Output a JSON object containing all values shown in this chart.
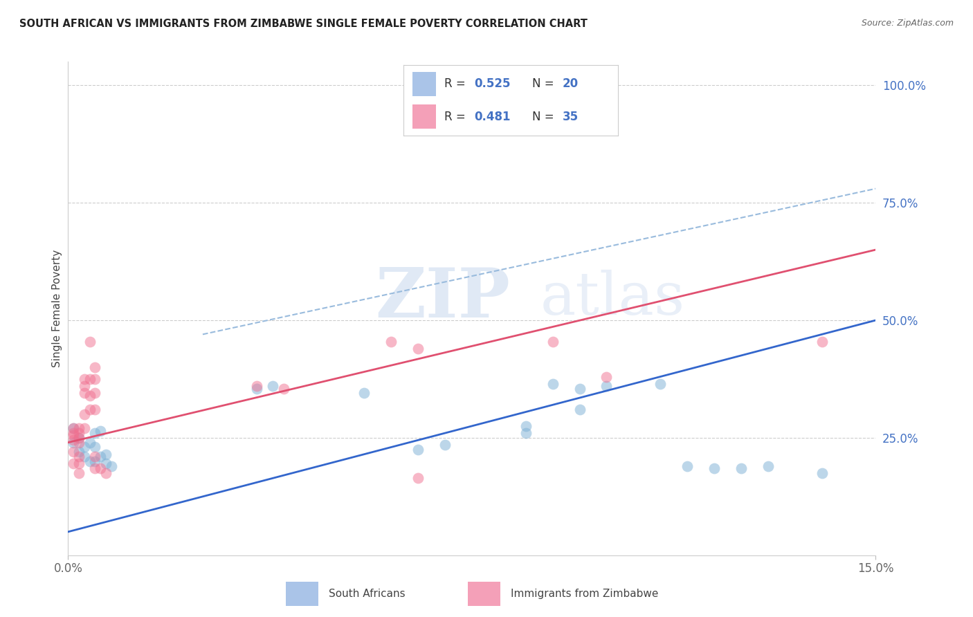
{
  "title": "SOUTH AFRICAN VS IMMIGRANTS FROM ZIMBABWE SINGLE FEMALE POVERTY CORRELATION CHART",
  "source": "Source: ZipAtlas.com",
  "ylabel": "Single Female Poverty",
  "ytick_vals": [
    0.25,
    0.5,
    0.75,
    1.0
  ],
  "ytick_labels": [
    "25.0%",
    "50.0%",
    "75.0%",
    "100.0%"
  ],
  "xtick_vals": [
    0.0,
    0.15
  ],
  "xtick_labels": [
    "0.0%",
    "15.0%"
  ],
  "sa_color": "#7bafd4",
  "zim_color": "#f07090",
  "trendline_sa_color": "#3366cc",
  "trendline_zim_color": "#e05070",
  "trendline_dashed_color": "#99bbdd",
  "xmin": 0.0,
  "xmax": 0.15,
  "ymin": 0.0,
  "ymax": 1.05,
  "marker_size": 130,
  "marker_alpha": 0.5,
  "south_africans_x": [
    0.001,
    0.001,
    0.002,
    0.002,
    0.003,
    0.003,
    0.004,
    0.004,
    0.005,
    0.005,
    0.005,
    0.006,
    0.006,
    0.007,
    0.007,
    0.008,
    0.035,
    0.038,
    0.055,
    0.065,
    0.07,
    0.085,
    0.085,
    0.09,
    0.095,
    0.095,
    0.1,
    0.11,
    0.115,
    0.12,
    0.125,
    0.13,
    0.14
  ],
  "south_africans_y": [
    0.27,
    0.24,
    0.25,
    0.22,
    0.23,
    0.21,
    0.24,
    0.2,
    0.26,
    0.23,
    0.2,
    0.265,
    0.21,
    0.215,
    0.195,
    0.19,
    0.355,
    0.36,
    0.345,
    0.225,
    0.235,
    0.275,
    0.26,
    0.365,
    0.355,
    0.31,
    0.36,
    0.365,
    0.19,
    0.185,
    0.185,
    0.19,
    0.175
  ],
  "immigrants_zim_x": [
    0.001,
    0.001,
    0.001,
    0.001,
    0.001,
    0.001,
    0.002,
    0.002,
    0.002,
    0.002,
    0.002,
    0.002,
    0.002,
    0.003,
    0.003,
    0.003,
    0.003,
    0.003,
    0.004,
    0.004,
    0.004,
    0.004,
    0.005,
    0.005,
    0.005,
    0.005,
    0.005,
    0.005,
    0.006,
    0.007,
    0.035,
    0.04,
    0.06,
    0.065,
    0.065,
    0.09,
    0.1,
    0.14
  ],
  "immigrants_zim_y": [
    0.27,
    0.26,
    0.255,
    0.245,
    0.22,
    0.195,
    0.27,
    0.26,
    0.25,
    0.24,
    0.21,
    0.195,
    0.175,
    0.375,
    0.36,
    0.345,
    0.3,
    0.27,
    0.455,
    0.375,
    0.34,
    0.31,
    0.4,
    0.375,
    0.345,
    0.31,
    0.21,
    0.185,
    0.185,
    0.175,
    0.36,
    0.355,
    0.455,
    0.44,
    0.165,
    0.455,
    0.38,
    0.455
  ],
  "trendline_sa": [
    0.0,
    0.15,
    0.05,
    0.5
  ],
  "trendline_zim": [
    0.0,
    0.15,
    0.24,
    0.65
  ],
  "trendline_dashed": [
    0.025,
    0.15,
    0.47,
    0.78
  ]
}
